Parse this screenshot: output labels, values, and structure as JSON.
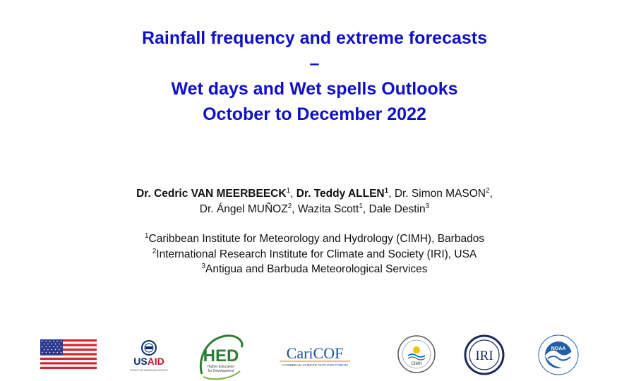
{
  "title": {
    "line1": "Rainfall frequency and extreme forecasts",
    "line2": "–",
    "line3": "Wet days and Wet spells Outlooks",
    "line4": "October to December 2022"
  },
  "authors": {
    "a1_name": "Dr. Cedric VAN MEERBEECK",
    "a1_sup": "1",
    "a2_name": "Dr. Teddy ALLEN",
    "a2_sup": "1",
    "a3_name": "Dr. Simon MASON",
    "a3_sup": "2",
    "a4_name": "Dr. Ángel MUÑOZ",
    "a4_sup": "2",
    "a5_name": "Wazita Scott",
    "a5_sup": "1",
    "a6_name": "Dale Destin",
    "a6_sup": "3"
  },
  "affiliations": [
    {
      "sup": "1",
      "text": "Caribbean Institute for Meteorology and Hydrology (CIMH), Barbados"
    },
    {
      "sup": "2",
      "text": "International Research Institute for Climate and Society (IRI), USA"
    },
    {
      "sup": "3",
      "text": "Antigua and Barbuda Meteorological Services"
    }
  ],
  "logos": {
    "usaid": {
      "name": "USAID",
      "tagline": "FROM THE AMERICAN PEOPLE"
    },
    "hed": {
      "name": "HED",
      "tagline1": "Higher Education",
      "tagline2": "for Development"
    },
    "caricof": {
      "name": "CariCOF",
      "tagline": "CARIBBEAN CLIMATE OUTLOOK FORUM"
    },
    "cimh": {
      "name": "CIMH"
    },
    "iri": {
      "name": "IRI"
    },
    "noaa": {
      "name": "NOAA"
    }
  },
  "colors": {
    "title": "#1010c8",
    "usaid_red": "#c8102e",
    "usaid_blue": "#002a6c",
    "hed_green": "#2e7d32",
    "caricof_blue": "#1a4f9c",
    "iri_navy": "#1c2a5a",
    "noaa_blue": "#1f5fa8"
  }
}
